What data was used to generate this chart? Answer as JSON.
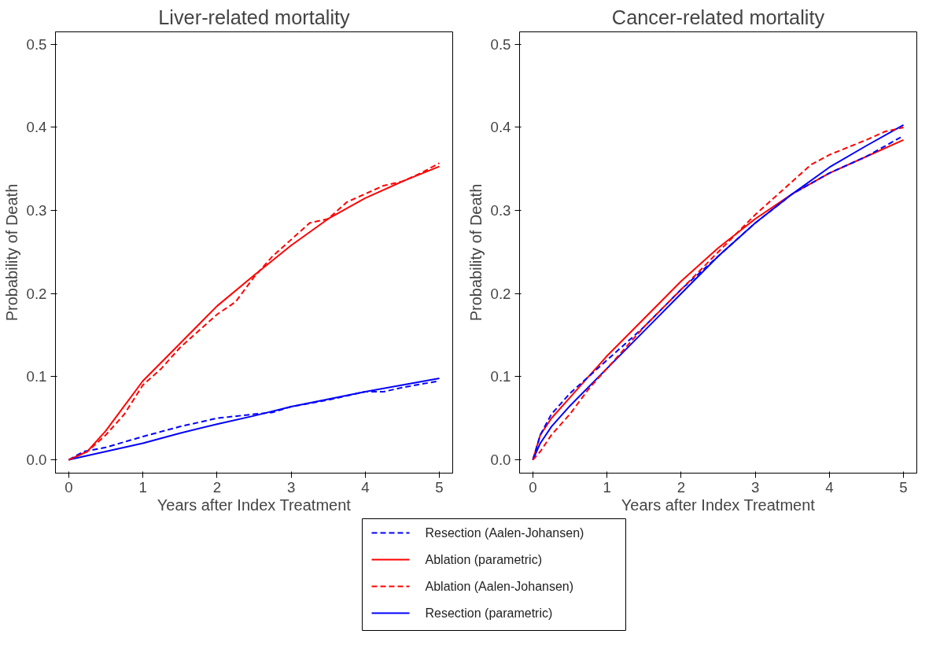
{
  "chart_data": [
    {
      "type": "line",
      "title": "Liver-related mortality",
      "xlabel": "Years after Index Treatment",
      "ylabel": "Probability of Death",
      "xlim": [
        -0.18,
        5.18
      ],
      "ylim": [
        -0.016,
        0.515
      ],
      "xticks": [
        0,
        1,
        2,
        3,
        4,
        5
      ],
      "yticks": [
        {
          "value": 0,
          "label": "0.0"
        },
        {
          "value": 0.1,
          "label": "0.1"
        },
        {
          "value": 0.2,
          "label": "0.2"
        },
        {
          "value": 0.3,
          "label": "0.3"
        },
        {
          "value": 0.4,
          "label": "0.4"
        },
        {
          "value": 0.5,
          "label": "0.5"
        }
      ],
      "grid": false,
      "legend": "bottom",
      "series": [
        {
          "name": "Resection (Aalen-Johansen)",
          "color": "#0000ff",
          "line_style": "dashed",
          "x": [
            0,
            0.2,
            0.5,
            1,
            1.5,
            2,
            2.5,
            2.75,
            3,
            3.5,
            4,
            4.25,
            4.5,
            5
          ],
          "values": [
            0,
            0.01,
            0.015,
            0.028,
            0.04,
            0.05,
            0.055,
            0.057,
            0.064,
            0.072,
            0.082,
            0.082,
            0.087,
            0.095
          ]
        },
        {
          "name": "Ablation (parametric)",
          "color": "#ff0000",
          "line_style": "solid",
          "x": [
            0,
            0.25,
            0.5,
            0.75,
            1,
            1.5,
            2,
            2.5,
            3,
            3.5,
            4,
            4.5,
            5
          ],
          "values": [
            0,
            0.01,
            0.035,
            0.065,
            0.095,
            0.14,
            0.185,
            0.222,
            0.258,
            0.29,
            0.315,
            0.335,
            0.353
          ]
        },
        {
          "name": "Ablation (Aalen-Johansen)",
          "color": "#ff0000",
          "line_style": "dashed",
          "x": [
            0,
            0.25,
            0.5,
            0.75,
            1,
            1.25,
            1.5,
            1.75,
            2,
            2.25,
            2.5,
            2.75,
            3,
            3.25,
            3.5,
            3.75,
            4,
            4.25,
            4.5,
            4.75,
            5
          ],
          "values": [
            0,
            0.01,
            0.03,
            0.055,
            0.09,
            0.11,
            0.135,
            0.155,
            0.175,
            0.19,
            0.22,
            0.245,
            0.265,
            0.285,
            0.29,
            0.31,
            0.32,
            0.33,
            0.335,
            0.345,
            0.357
          ]
        },
        {
          "name": "Resection (parametric)",
          "color": "#0000ff",
          "line_style": "solid",
          "x": [
            0,
            0.5,
            1,
            1.5,
            2,
            2.5,
            3,
            3.5,
            4,
            4.5,
            5
          ],
          "values": [
            0,
            0.01,
            0.02,
            0.032,
            0.043,
            0.053,
            0.064,
            0.073,
            0.082,
            0.09,
            0.098
          ]
        }
      ]
    },
    {
      "type": "line",
      "title": "Cancer-related mortality",
      "xlabel": "Years after Index Treatment",
      "ylabel": "Probability of Death",
      "xlim": [
        -0.18,
        5.18
      ],
      "ylim": [
        -0.016,
        0.515
      ],
      "xticks": [
        0,
        1,
        2,
        3,
        4,
        5
      ],
      "yticks": [
        {
          "value": 0,
          "label": "0.0"
        },
        {
          "value": 0.1,
          "label": "0.1"
        },
        {
          "value": 0.2,
          "label": "0.2"
        },
        {
          "value": 0.3,
          "label": "0.3"
        },
        {
          "value": 0.4,
          "label": "0.4"
        },
        {
          "value": 0.5,
          "label": "0.5"
        }
      ],
      "grid": false,
      "series": [
        {
          "color": "#0000ff",
          "line_style": "dashed",
          "x": [
            0,
            0.1,
            0.25,
            0.5,
            1,
            1.5,
            2,
            2.5,
            3,
            3.5,
            4,
            4.5,
            5
          ],
          "values": [
            0,
            0.03,
            0.055,
            0.08,
            0.12,
            0.16,
            0.205,
            0.245,
            0.285,
            0.32,
            0.345,
            0.365,
            0.39
          ]
        },
        {
          "color": "#ff0000",
          "line_style": "solid",
          "x": [
            0,
            0.1,
            0.25,
            0.5,
            0.75,
            1,
            1.5,
            2,
            2.5,
            3,
            3.5,
            4,
            4.5,
            5
          ],
          "values": [
            0,
            0.03,
            0.05,
            0.075,
            0.1,
            0.125,
            0.17,
            0.215,
            0.255,
            0.29,
            0.32,
            0.345,
            0.365,
            0.385
          ]
        },
        {
          "color": "#ff0000",
          "line_style": "dashed",
          "x": [
            0,
            0.1,
            0.25,
            0.5,
            0.75,
            1,
            1.5,
            2,
            2.5,
            3,
            3.25,
            3.5,
            3.75,
            4,
            4.5,
            4.75,
            5
          ],
          "values": [
            0,
            0.01,
            0.03,
            0.055,
            0.085,
            0.11,
            0.16,
            0.205,
            0.25,
            0.295,
            0.315,
            0.335,
            0.355,
            0.367,
            0.385,
            0.395,
            0.4
          ]
        },
        {
          "color": "#0000ff",
          "line_style": "solid",
          "x": [
            0,
            0.1,
            0.25,
            0.5,
            1,
            1.5,
            2,
            2.5,
            3,
            3.5,
            4,
            4.5,
            5
          ],
          "values": [
            0,
            0.02,
            0.04,
            0.065,
            0.11,
            0.155,
            0.2,
            0.245,
            0.285,
            0.32,
            0.352,
            0.378,
            0.403
          ]
        }
      ]
    }
  ]
}
